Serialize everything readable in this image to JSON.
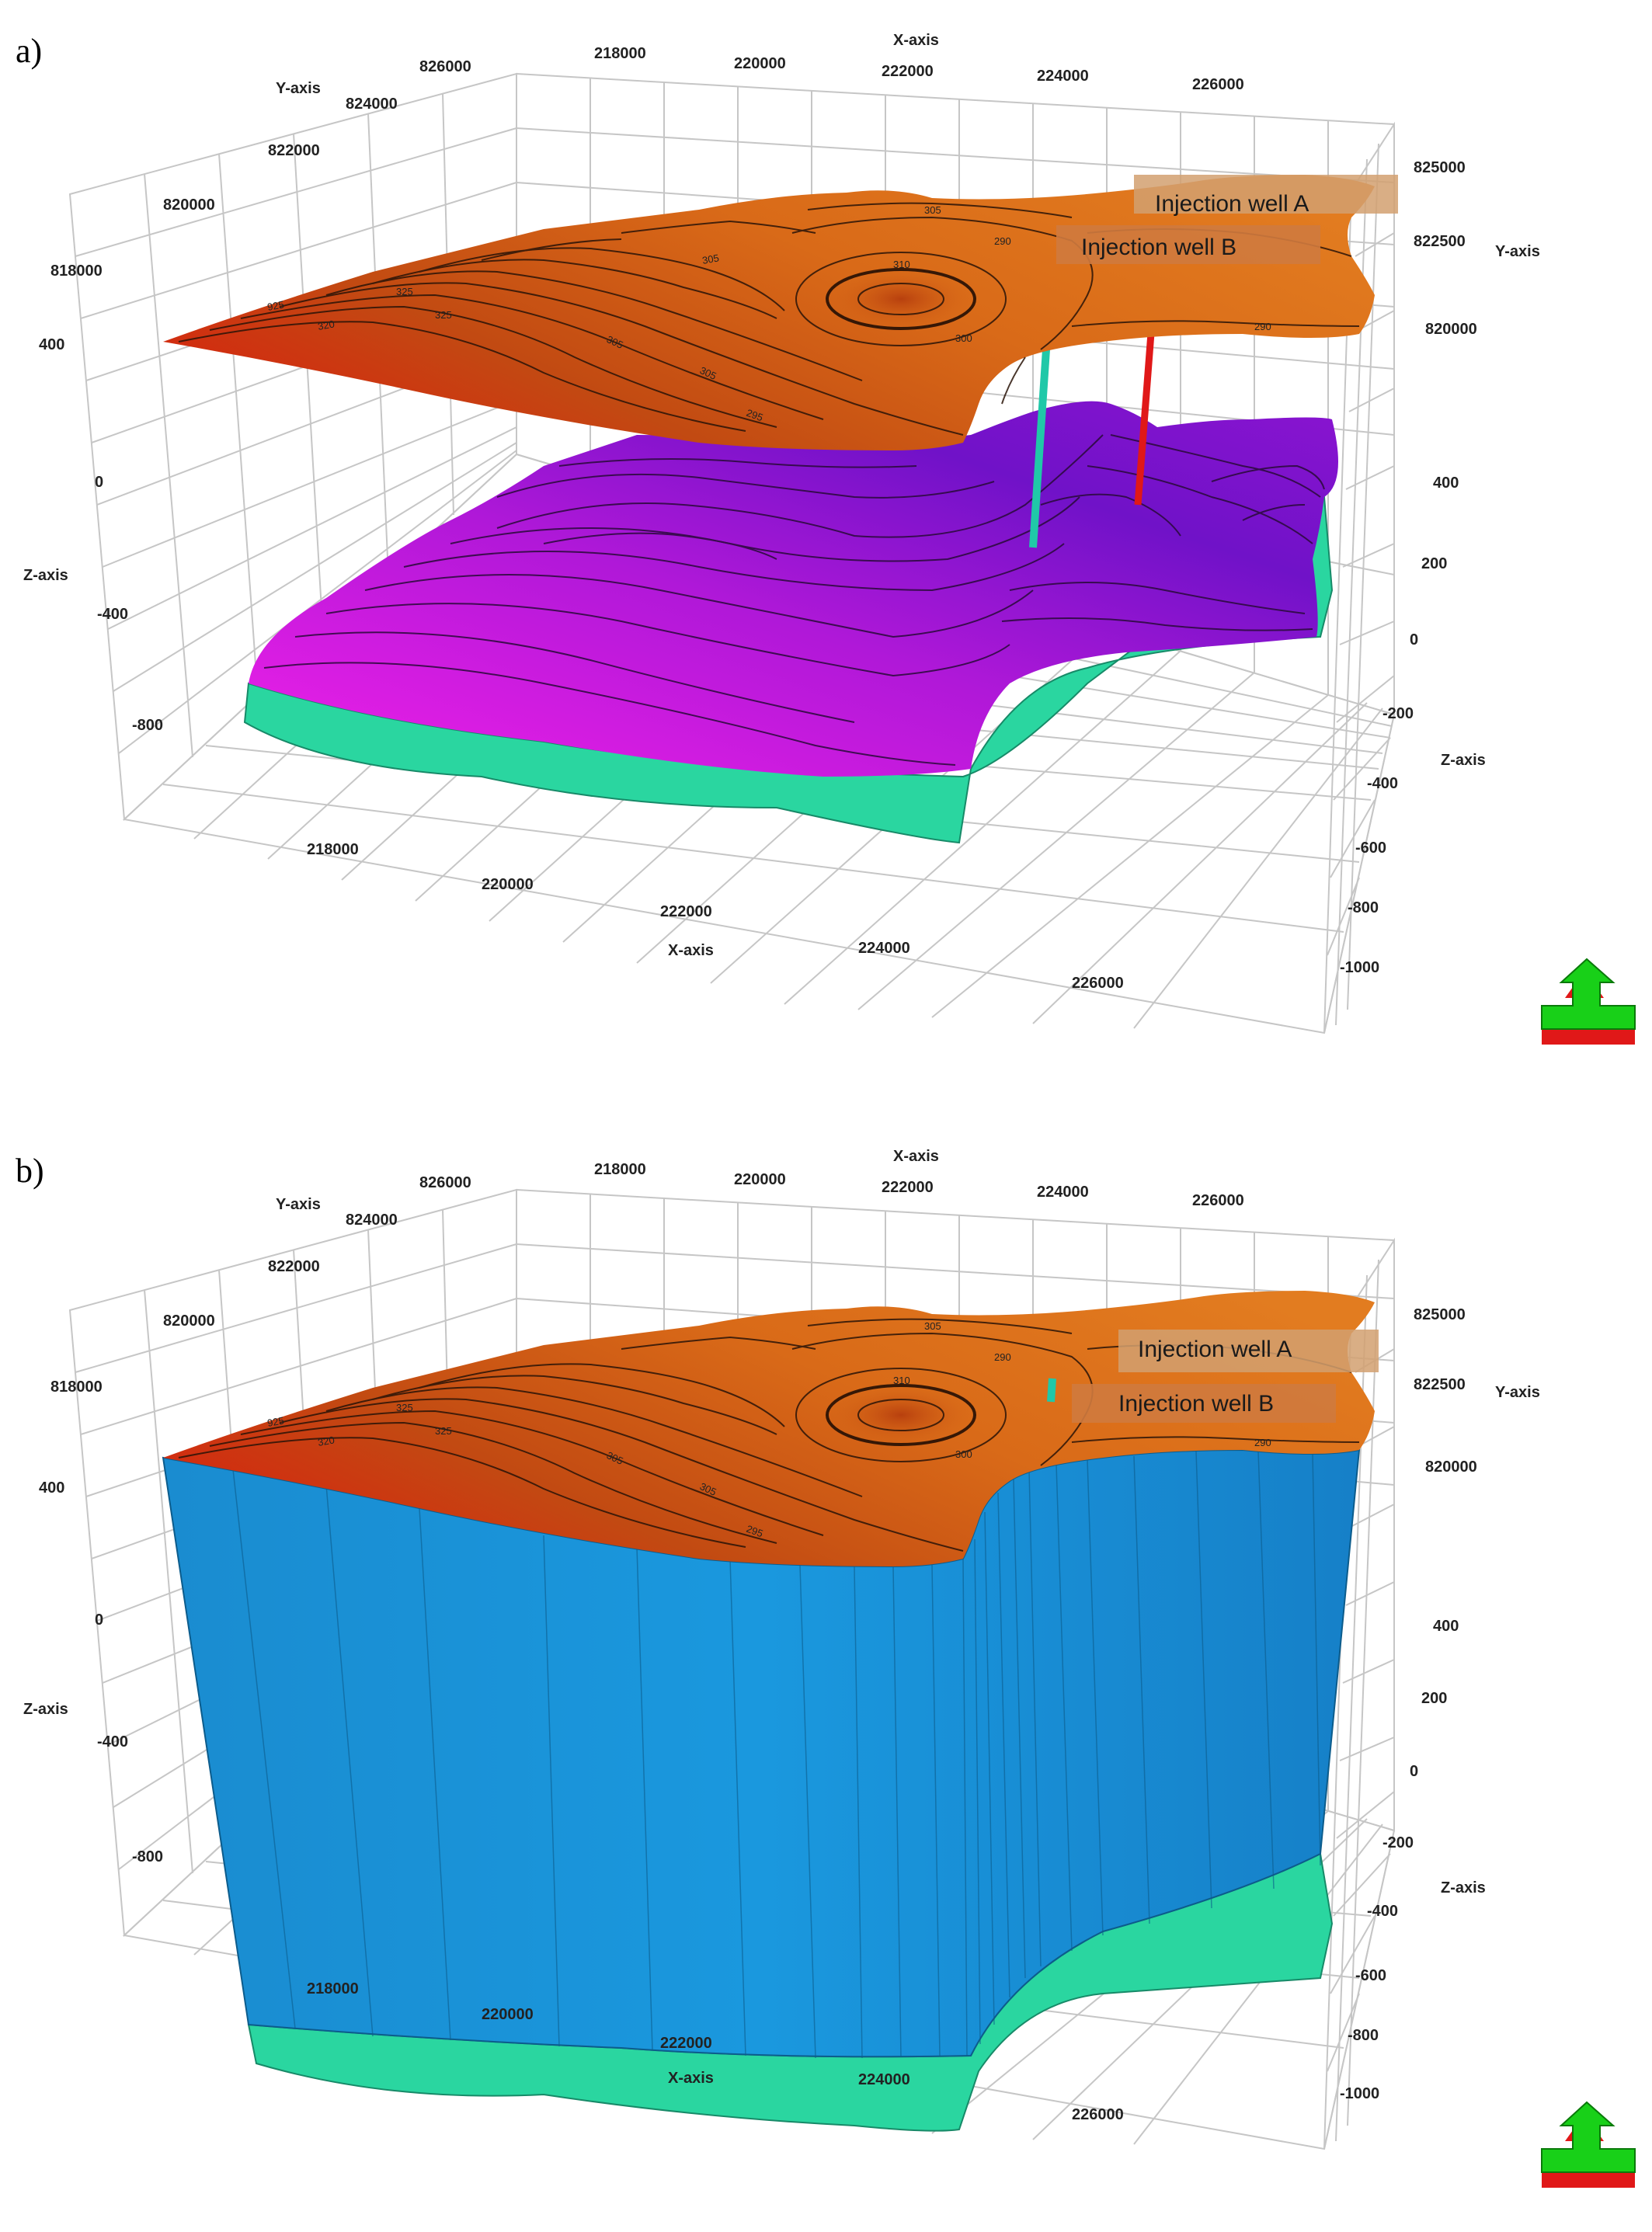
{
  "panels": [
    {
      "label": "a)",
      "well_a": "Injection well A",
      "well_b": "Injection well B",
      "axis_titles": {
        "x_top": "X-axis",
        "x_bottom": "X-axis",
        "y_left": "Y-axis",
        "y_right": "Y-axis",
        "z_left": "Z-axis",
        "z_right": "Z-axis"
      },
      "x_ticks_top": [
        "218000",
        "220000",
        "222000",
        "224000",
        "226000"
      ],
      "x_ticks_bottom": [
        "218000",
        "220000",
        "222000",
        "224000",
        "226000"
      ],
      "y_ticks_left": [
        "826000",
        "824000",
        "822000",
        "820000",
        "818000"
      ],
      "y_ticks_right": [
        "825000",
        "822500",
        "820000"
      ],
      "z_ticks_left": [
        "400",
        "0",
        "-400",
        "-800"
      ],
      "z_ticks_right": [
        "400",
        "200",
        "0",
        "-200",
        "-400",
        "-600",
        "-800",
        "-1000"
      ]
    },
    {
      "label": "b)",
      "well_a": "Injection well A",
      "well_b": "Injection well B",
      "axis_titles": {
        "x_top": "X-axis",
        "x_bottom": "X-axis",
        "y_left": "Y-axis",
        "y_right": "Y-axis",
        "z_left": "Z-axis",
        "z_right": "Z-axis"
      },
      "x_ticks_top": [
        "218000",
        "220000",
        "222000",
        "224000",
        "226000"
      ],
      "x_ticks_bottom": [
        "218000",
        "220000",
        "222000",
        "224000",
        "226000"
      ],
      "y_ticks_left": [
        "826000",
        "824000",
        "822000",
        "820000",
        "818000"
      ],
      "y_ticks_right": [
        "825000",
        "822500",
        "820000"
      ],
      "z_ticks_left": [
        "400",
        "0",
        "-400",
        "-800"
      ],
      "z_ticks_right": [
        "400",
        "200",
        "0",
        "-200",
        "-400",
        "-600",
        "-800",
        "-1000"
      ]
    }
  ],
  "colors": {
    "top_surface_light": "#e0741c",
    "top_surface_dark": "#b8400e",
    "top_surface_red": "#d22a10",
    "bottom_surface_magenta": "#e020e0",
    "bottom_surface_violet": "#6010c8",
    "side_teal": "#2ad6a0",
    "side_blue": "#1890d8",
    "well_a": "#e01818",
    "well_b": "#20c8a8",
    "grid": "#c8c8c8",
    "nav_green": "#18d018",
    "nav_red": "#e01818"
  },
  "icons": [
    "navigation-arrow-icon"
  ]
}
